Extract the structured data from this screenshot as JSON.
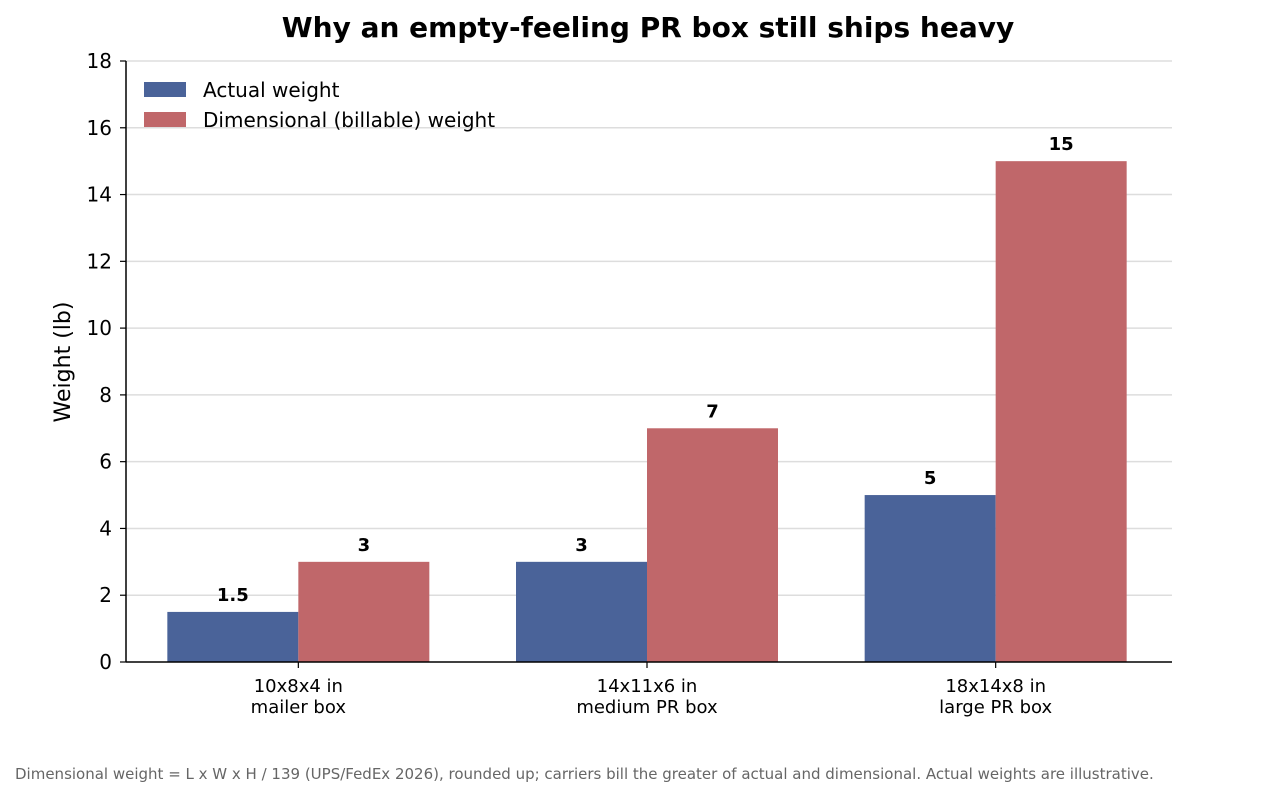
{
  "chart_data": {
    "type": "bar",
    "title": "Why an empty-feeling PR box still ships heavy",
    "xlabel": "",
    "ylabel": "Weight (lb)",
    "ylim": [
      0,
      18
    ],
    "yticks": [
      0,
      2,
      4,
      6,
      8,
      10,
      12,
      14,
      16,
      18
    ],
    "grid": "horizontal",
    "legend_position": "top-left",
    "categories": [
      [
        "10x8x4 in",
        "mailer box"
      ],
      [
        "14x11x6 in",
        "medium PR box"
      ],
      [
        "18x14x8 in",
        "large PR box"
      ]
    ],
    "series": [
      {
        "name": "Actual weight",
        "color": "#4a6399",
        "values": [
          1.5,
          3,
          5
        ],
        "labels": [
          "1.5",
          "3",
          "5"
        ]
      },
      {
        "name": "Dimensional (billable) weight",
        "color": "#c0676a",
        "values": [
          3,
          7,
          15
        ],
        "labels": [
          "3",
          "7",
          "15"
        ]
      }
    ]
  },
  "footnote": "Dimensional weight = L x W x H / 139 (UPS/FedEx 2026), rounded up; carriers bill the greater of actual and dimensional. Actual weights are illustrative."
}
